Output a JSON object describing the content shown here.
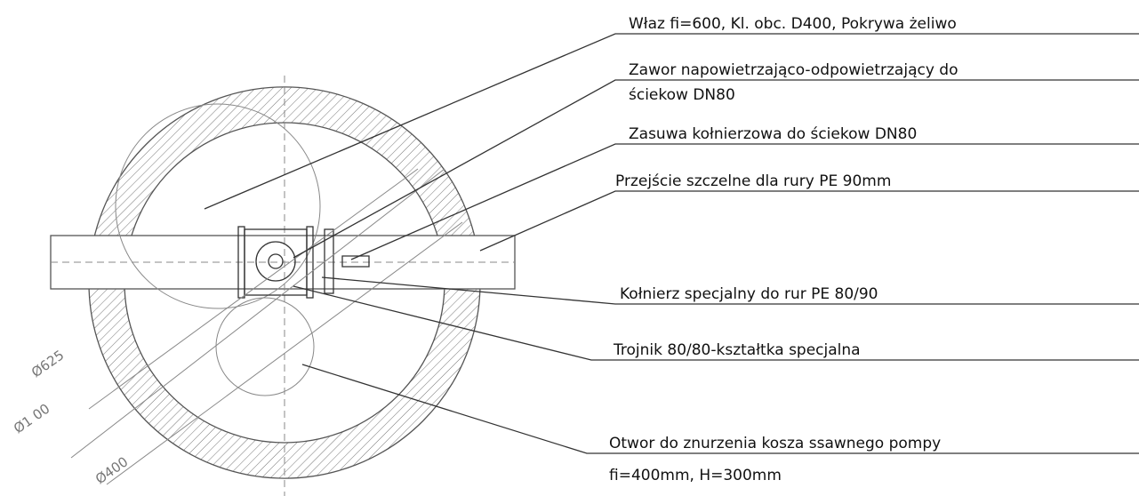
{
  "labels": [
    {
      "lines": [
        "Właz fi=600, Kl. obc. D400, Pokrywa   żeliwo"
      ]
    },
    {
      "lines": [
        "Zawor napowietrzająco-odpowietrzający do",
        "ściekow DN80"
      ]
    },
    {
      "lines": [
        "Zasuwa kołnierzowa do ściekow DN80"
      ]
    },
    {
      "lines": [
        "Przejście szczelne dla rury PE 90mm"
      ]
    },
    {
      "lines": [
        "Kołnierz specjalny do rur PE 80/90"
      ]
    },
    {
      "lines": [
        "Trojnik 80/80-kształtka specjalna"
      ]
    },
    {
      "lines": [
        "Otwor do znurzenia kosza ssawnego pompy",
        "fi=400mm, H=300mm"
      ]
    }
  ],
  "dimensions": [
    "Ø625",
    "Ø1 00",
    "Ø400"
  ]
}
